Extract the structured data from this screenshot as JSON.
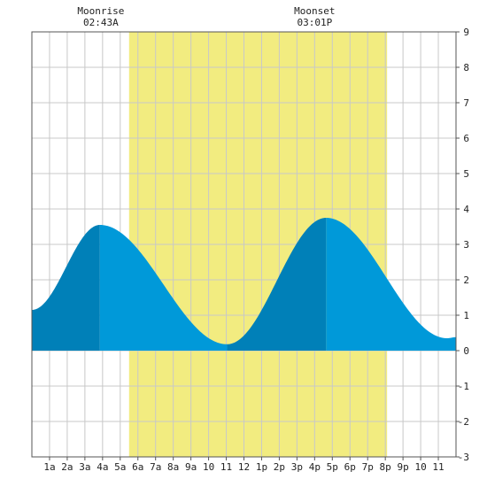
{
  "chart_data": {
    "type": "area",
    "x_range": [
      0,
      24
    ],
    "ylim": [
      -3,
      9
    ],
    "y_ticks": [
      -3,
      -2,
      -1,
      0,
      1,
      2,
      3,
      4,
      5,
      6,
      7,
      8,
      9
    ],
    "y_tick_labels": [
      "-3",
      "-2",
      "-1",
      "0",
      "1",
      "2",
      "3",
      "4",
      "5",
      "6",
      "7",
      "8",
      "9"
    ],
    "x_ticks": [
      1,
      2,
      3,
      4,
      5,
      6,
      7,
      8,
      9,
      10,
      11,
      12,
      13,
      14,
      15,
      16,
      17,
      18,
      19,
      20,
      21,
      22,
      23
    ],
    "x_tick_labels": [
      "1a",
      "2a",
      "3a",
      "4a",
      "5a",
      "6a",
      "7a",
      "8a",
      "9a",
      "10",
      "11",
      "12",
      "1p",
      "2p",
      "3p",
      "4p",
      "5p",
      "6p",
      "7p",
      "8p",
      "9p",
      "10",
      "11"
    ],
    "grid": true,
    "daylight_span": [
      5.5,
      20.1
    ],
    "tide_extremes": [
      {
        "x": 0,
        "y": 1.15
      },
      {
        "x": 3.85,
        "y": 3.55
      },
      {
        "x": 11.05,
        "y": 0.18
      },
      {
        "x": 16.65,
        "y": 3.75
      },
      {
        "x": 23.5,
        "y": 0.35
      },
      {
        "x": 24,
        "y": 0.38
      }
    ],
    "tide_shading_breaks": [
      0,
      3.85,
      11.05,
      16.65,
      24
    ],
    "annotations": [
      {
        "label": "Moonrise",
        "time": "02:43A",
        "x": 3.9
      },
      {
        "label": "Moonset",
        "time": "03:01P",
        "x": 16.0
      }
    ],
    "colors": {
      "daylight": "#f2ec80",
      "rising_tide": "#0080b8",
      "falling_tide": "#0099d9",
      "grid": "#c8c8c8",
      "frame": "#555555"
    }
  }
}
